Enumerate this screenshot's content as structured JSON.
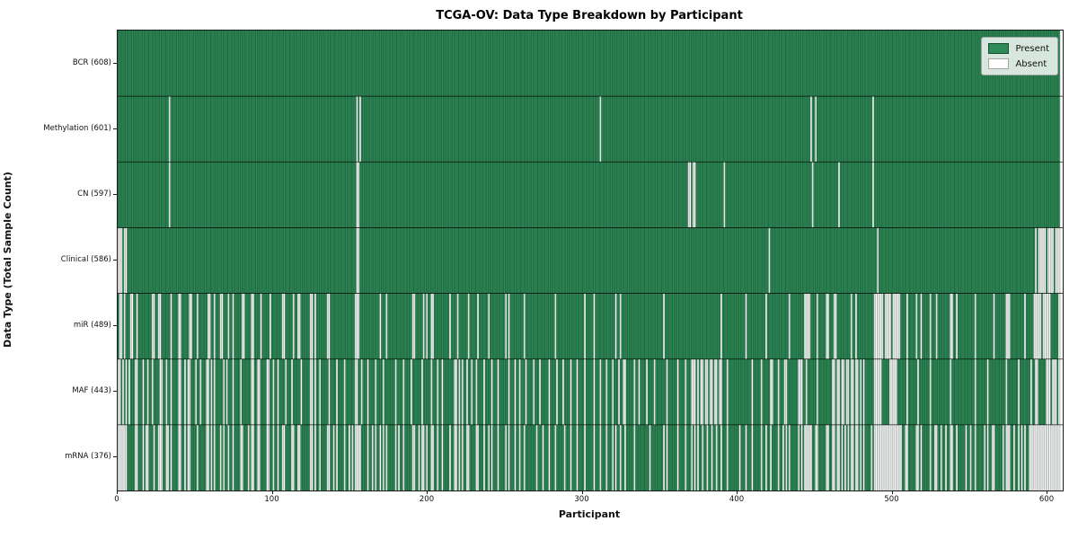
{
  "chart_data": {
    "type": "heatmap",
    "title": "TCGA-OV: Data Type Breakdown by Participant",
    "xlabel": "Participant",
    "ylabel": "Data Type (Total Sample Count)",
    "n_participants": 608,
    "x_ticks": [
      0,
      100,
      200,
      300,
      400,
      500,
      600
    ],
    "x_axis_max": 610,
    "grid": false,
    "legend": {
      "position": "upper right",
      "entries": [
        {
          "label": "Present",
          "color": "#2e8b57"
        },
        {
          "label": "Absent",
          "color": "#ffffff"
        }
      ]
    },
    "colors": {
      "present": "#2e8b57",
      "absent": "#ffffff",
      "bar_edge": "#000000",
      "row_divider": "#000000",
      "spine": "#1a1a1a"
    },
    "rows": [
      {
        "label": "BCR (608)",
        "data_type": "BCR",
        "present_count": 608,
        "absent_count": 0,
        "absent_indices": []
      },
      {
        "label": "Methylation (601)",
        "data_type": "Methylation",
        "present_count": 601,
        "absent_count": 7,
        "absent_indices": [
          33,
          154,
          156,
          311,
          447,
          450,
          487
        ]
      },
      {
        "label": "CN (597)",
        "data_type": "CN",
        "present_count": 597,
        "absent_count": 11,
        "absent_indices": [
          33,
          154,
          155,
          368,
          369,
          371,
          372,
          391,
          448,
          465,
          487
        ]
      },
      {
        "label": "Clinical (586)",
        "data_type": "Clinical",
        "present_count": 586,
        "absent_count": 22,
        "absent_indices": [
          0,
          1,
          2,
          4,
          5,
          154,
          155,
          420,
          490,
          592,
          594,
          595,
          596,
          597,
          598,
          600,
          601,
          602,
          603,
          605,
          606,
          607
        ]
      },
      {
        "label": "miR (489)",
        "data_type": "miR",
        "present_count": 489,
        "absent_count": 119,
        "absent_indices": [
          1,
          2,
          4,
          8,
          9,
          12,
          22,
          23,
          26,
          27,
          34,
          39,
          40,
          46,
          47,
          51,
          58,
          59,
          62,
          66,
          67,
          71,
          74,
          80,
          81,
          86,
          87,
          92,
          98,
          106,
          107,
          113,
          116,
          117,
          124,
          125,
          127,
          135,
          136,
          153,
          154,
          155,
          169,
          173,
          190,
          191,
          197,
          199,
          202,
          203,
          214,
          219,
          226,
          232,
          239,
          250,
          252,
          262,
          282,
          301,
          307,
          321,
          324,
          352,
          389,
          405,
          418,
          433,
          443,
          444,
          445,
          446,
          451,
          457,
          458,
          462,
          463,
          473,
          476,
          488,
          489,
          490,
          491,
          492,
          493,
          495,
          496,
          497,
          498,
          500,
          501,
          502,
          503,
          504,
          509,
          515,
          518,
          524,
          528,
          537,
          538,
          541,
          553,
          565,
          573,
          574,
          575,
          585,
          591,
          592,
          593,
          594,
          595,
          597,
          598,
          599,
          600,
          601,
          607
        ]
      },
      {
        "label": "MAF (443)",
        "data_type": "MAF",
        "present_count": 443,
        "absent_count": 165,
        "absent_indices": [
          0,
          1,
          3,
          5,
          7,
          11,
          12,
          16,
          19,
          22,
          27,
          28,
          31,
          34,
          39,
          40,
          43,
          45,
          46,
          50,
          53,
          57,
          58,
          60,
          62,
          68,
          70,
          74,
          79,
          86,
          87,
          90,
          91,
          96,
          97,
          100,
          103,
          108,
          112,
          118,
          124,
          125,
          127,
          130,
          136,
          141,
          146,
          153,
          154,
          157,
          161,
          166,
          171,
          179,
          184,
          189,
          196,
          202,
          206,
          209,
          217,
          218,
          220,
          222,
          225,
          228,
          231,
          236,
          241,
          245,
          252,
          256,
          259,
          263,
          268,
          272,
          278,
          283,
          287,
          292,
          296,
          301,
          307,
          311,
          315,
          319,
          323,
          326,
          327,
          333,
          336,
          341,
          346,
          354,
          361,
          366,
          370,
          371,
          372,
          374,
          376,
          377,
          379,
          380,
          382,
          383,
          385,
          386,
          388,
          389,
          393,
          409,
          415,
          421,
          422,
          426,
          430,
          431,
          439,
          440,
          441,
          444,
          451,
          461,
          462,
          464,
          465,
          467,
          468,
          470,
          471,
          473,
          474,
          476,
          477,
          479,
          481,
          488,
          489,
          490,
          491,
          492,
          498,
          499,
          500,
          501,
          502,
          509,
          516,
          524,
          537,
          553,
          561,
          573,
          581,
          589,
          592,
          593,
          599,
          600,
          601,
          603,
          604,
          605,
          607
        ]
      },
      {
        "label": "mRNA (376)",
        "data_type": "mRNA",
        "present_count": 376,
        "absent_count": 232,
        "absent_indices": [
          0,
          1,
          2,
          3,
          4,
          5,
          11,
          12,
          16,
          18,
          19,
          23,
          26,
          27,
          28,
          31,
          32,
          34,
          39,
          40,
          43,
          45,
          46,
          51,
          57,
          58,
          60,
          62,
          66,
          68,
          71,
          74,
          79,
          80,
          84,
          86,
          87,
          90,
          91,
          96,
          97,
          100,
          103,
          106,
          107,
          112,
          113,
          116,
          117,
          124,
          125,
          127,
          130,
          135,
          136,
          139,
          141,
          146,
          149,
          151,
          153,
          154,
          155,
          156,
          161,
          164,
          166,
          169,
          171,
          173,
          179,
          181,
          184,
          190,
          191,
          194,
          196,
          197,
          199,
          202,
          203,
          206,
          209,
          214,
          217,
          218,
          220,
          222,
          225,
          226,
          231,
          232,
          236,
          239,
          241,
          245,
          250,
          252,
          256,
          259,
          262,
          270,
          274,
          278,
          282,
          288,
          292,
          296,
          301,
          307,
          311,
          315,
          319,
          321,
          324,
          327,
          333,
          343,
          352,
          354,
          361,
          366,
          370,
          372,
          374,
          377,
          380,
          383,
          386,
          389,
          393,
          401,
          405,
          409,
          415,
          418,
          421,
          426,
          429,
          431,
          433,
          439,
          441,
          443,
          444,
          445,
          446,
          447,
          450,
          451,
          457,
          458,
          461,
          462,
          464,
          465,
          467,
          469,
          471,
          473,
          474,
          476,
          477,
          479,
          481,
          486,
          488,
          489,
          490,
          491,
          492,
          493,
          494,
          495,
          496,
          497,
          498,
          499,
          500,
          501,
          502,
          503,
          504,
          505,
          508,
          509,
          515,
          516,
          518,
          524,
          527,
          528,
          531,
          534,
          537,
          538,
          541,
          547,
          550,
          553,
          559,
          561,
          564,
          565,
          571,
          573,
          574,
          575,
          578,
          581,
          583,
          585,
          588,
          589,
          590,
          591,
          592,
          593,
          594,
          595,
          596,
          597,
          598,
          599,
          600,
          601,
          602,
          603,
          604,
          605,
          606,
          607
        ]
      }
    ]
  }
}
